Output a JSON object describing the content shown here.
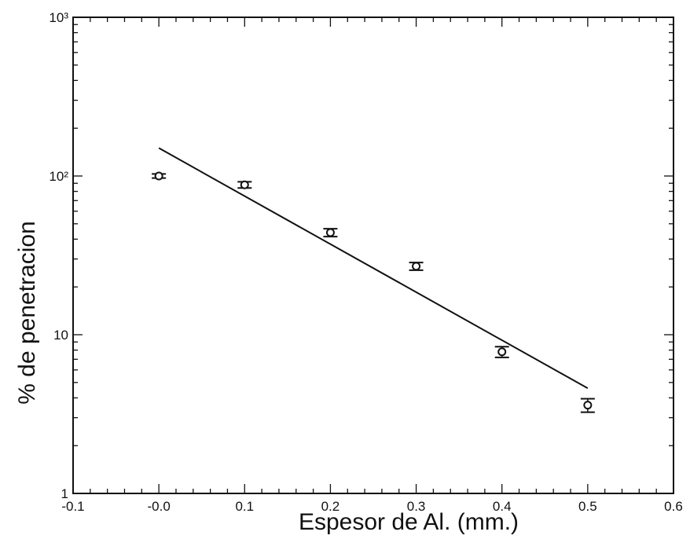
{
  "chart_data": {
    "type": "scatter",
    "title": "",
    "xlabel": "Espesor de Al. (mm.)",
    "ylabel": "% de penetracion",
    "x_scale": "linear",
    "y_scale": "log",
    "xlim": [
      -0.1,
      0.6
    ],
    "ylim": [
      1,
      1000
    ],
    "x_ticks": [
      -0.1,
      0.0,
      0.1,
      0.2,
      0.3,
      0.4,
      0.5,
      0.6
    ],
    "x_tick_labels": [
      "-0.1",
      "-0.0",
      "0.1",
      "0.2",
      "0.3",
      "0.4",
      "0.5",
      "0.6"
    ],
    "y_ticks": [
      1,
      10,
      100,
      1000
    ],
    "y_tick_labels": [
      "1",
      "10",
      "10²",
      "10³"
    ],
    "grid": false,
    "series": [
      {
        "marker": "circle",
        "color": "#111111",
        "points": [
          {
            "x": 0.0,
            "y": 100,
            "err": 3
          },
          {
            "x": 0.1,
            "y": 88,
            "err": 4
          },
          {
            "x": 0.2,
            "y": 44,
            "err": 2.5
          },
          {
            "x": 0.3,
            "y": 27,
            "err": 1.5
          },
          {
            "x": 0.4,
            "y": 7.8,
            "err": 0.6
          },
          {
            "x": 0.5,
            "y": 3.6,
            "err": 0.35
          }
        ]
      }
    ],
    "fit_line": {
      "style": "solid",
      "color": "#111111",
      "points": [
        {
          "x": 0.0,
          "y": 150
        },
        {
          "x": 0.5,
          "y": 4.6
        }
      ]
    }
  }
}
